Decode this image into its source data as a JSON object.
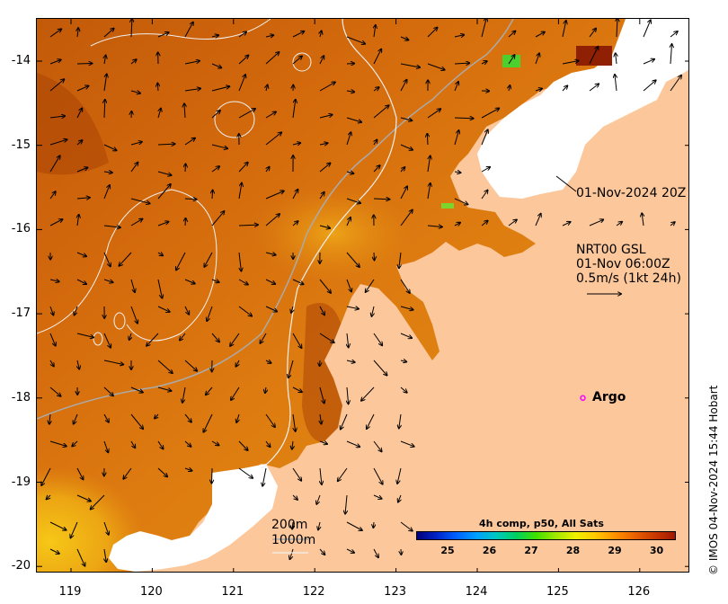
{
  "map": {
    "x_axis": {
      "ticks": [
        "119",
        "120",
        "121",
        "122",
        "123",
        "124",
        "125",
        "126"
      ]
    },
    "y_axis": {
      "ticks": [
        "-14",
        "-15",
        "-16",
        "-17",
        "-18",
        "-19",
        "-20"
      ]
    },
    "timestamp_label": "01-Nov-2024 20Z",
    "current_info": {
      "line1": "NRT00 GSL",
      "line2": "01-Nov 06:00Z",
      "line3": "0.5m/s (1kt 24h)"
    },
    "argo": {
      "label": "Argo",
      "lon": 125.3,
      "lat": -18.0,
      "color": "#ff00ff"
    },
    "bathymetry": {
      "label_200": "200m",
      "label_1000": "1000m"
    },
    "colorbar": {
      "title": "4h comp, p50, All Sats",
      "tick_labels": [
        "25",
        "26",
        "27",
        "28",
        "29",
        "30"
      ],
      "colors": [
        "#00007a",
        "#0024c8",
        "#0062ff",
        "#00a0ff",
        "#00c8c0",
        "#00d060",
        "#40e000",
        "#a0e800",
        "#f0f000",
        "#ffc800",
        "#ff9000",
        "#e86000",
        "#c83800",
        "#a01800"
      ]
    },
    "colors": {
      "land": "#fcc89b",
      "cloud": "#ffffff",
      "sst_warm": "#d76b0e",
      "sst_hot": "#a63603",
      "sst_cool": "#f4c40f"
    }
  },
  "copyright": "© IMOS 04-Nov-2024 15:44 Hobart"
}
